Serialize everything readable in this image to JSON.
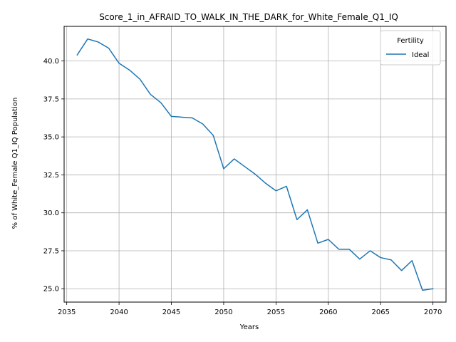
{
  "chart_data": {
    "type": "line",
    "title": "Score_1_in_AFRAID_TO_WALK_IN_THE_DARK_for_White_Female_Q1_IQ",
    "xlabel": "Years",
    "ylabel": "% of White_Female Q1_IQ Population",
    "xlim": [
      2034.75,
      2071.25
    ],
    "ylim": [
      24.12,
      42.28
    ],
    "x_ticks": [
      2035,
      2040,
      2045,
      2050,
      2055,
      2060,
      2065,
      2070
    ],
    "y_ticks": [
      25.0,
      27.5,
      30.0,
      32.5,
      35.0,
      37.5,
      40.0
    ],
    "x_tick_labels": [
      "2035",
      "2040",
      "2045",
      "2050",
      "2055",
      "2060",
      "2065",
      "2070"
    ],
    "y_tick_labels": [
      "25.0",
      "27.5",
      "30.0",
      "32.5",
      "35.0",
      "37.5",
      "40.0"
    ],
    "grid": true,
    "legend": {
      "title": "Fertility",
      "position": "top-right"
    },
    "series": [
      {
        "name": "Ideal",
        "color": "#1f77b4",
        "x": [
          2036,
          2037,
          2038,
          2039,
          2040,
          2041,
          2042,
          2043,
          2044,
          2045,
          2046,
          2047,
          2048,
          2049,
          2050,
          2051,
          2052,
          2053,
          2054,
          2055,
          2056,
          2057,
          2058,
          2059,
          2060,
          2061,
          2062,
          2063,
          2064,
          2065,
          2066,
          2067,
          2068,
          2069,
          2070
        ],
        "values": [
          40.4,
          41.45,
          41.25,
          40.85,
          39.85,
          39.4,
          38.8,
          37.8,
          37.25,
          36.35,
          36.3,
          36.25,
          35.85,
          35.1,
          32.9,
          33.55,
          33.05,
          32.55,
          31.95,
          31.45,
          31.75,
          29.55,
          30.2,
          28.0,
          28.25,
          27.6,
          27.6,
          26.95,
          27.5,
          27.05,
          26.9,
          26.2,
          26.85,
          24.9,
          25.0
        ]
      }
    ]
  }
}
